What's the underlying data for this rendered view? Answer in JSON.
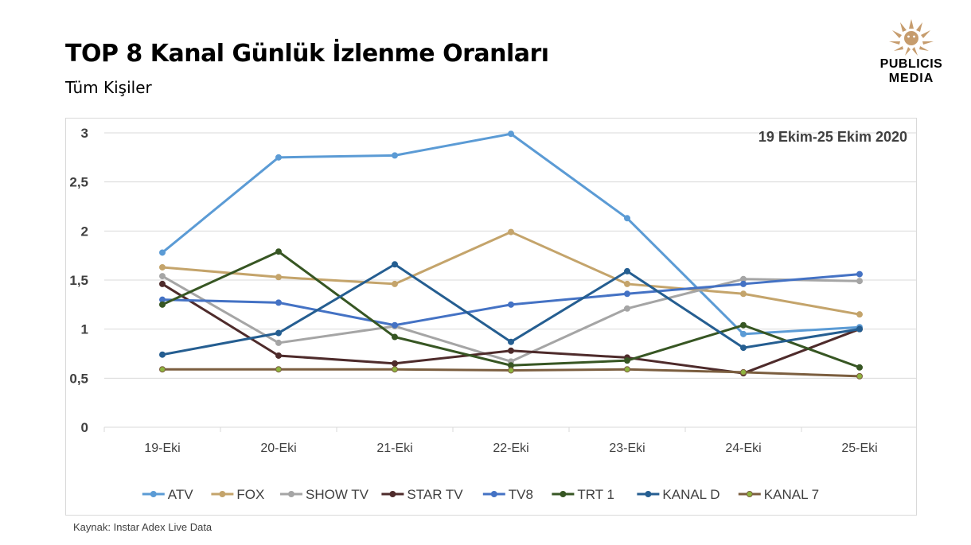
{
  "header": {
    "title": "TOP 8 Kanal Günlük İzlenme Oranları",
    "subtitle": "Tüm Kişiler"
  },
  "logo": {
    "line1": "PUBLICIS",
    "line2": "MEDIA",
    "color": "#c69c6d"
  },
  "footer": {
    "source": "Kaynak: Instar  Adex Live Data"
  },
  "chart_data": {
    "type": "line",
    "title": "",
    "annotation": "19 Ekim-25 Ekim 2020",
    "xlabel": "",
    "ylabel": "",
    "ylim": [
      0,
      3
    ],
    "yticks": [
      "0",
      "0,5",
      "1",
      "1,5",
      "2",
      "2,5",
      "3"
    ],
    "grid": true,
    "legend_position": "bottom",
    "categories": [
      "19-Eki",
      "20-Eki",
      "21-Eki",
      "22-Eki",
      "23-Eki",
      "24-Eki",
      "25-Eki"
    ],
    "series": [
      {
        "name": "ATV",
        "color": "#5b9bd5",
        "values": [
          1.78,
          2.75,
          2.77,
          2.99,
          2.13,
          0.95,
          1.02
        ]
      },
      {
        "name": "FOX",
        "color": "#c4a46b",
        "values": [
          1.63,
          1.53,
          1.46,
          1.99,
          1.46,
          1.36,
          1.15
        ]
      },
      {
        "name": "SHOW TV",
        "color": "#a5a5a5",
        "values": [
          1.54,
          0.86,
          1.03,
          0.67,
          1.21,
          1.51,
          1.49
        ]
      },
      {
        "name": "STAR TV",
        "color": "#4e2b2b",
        "values": [
          1.46,
          0.73,
          0.65,
          0.78,
          0.71,
          0.55,
          1.0
        ]
      },
      {
        "name": "TV8",
        "color": "#4472c4",
        "values": [
          1.3,
          1.27,
          1.04,
          1.25,
          1.36,
          1.46,
          1.56
        ]
      },
      {
        "name": "TRT 1",
        "color": "#375623",
        "values": [
          1.25,
          1.79,
          0.92,
          0.63,
          0.68,
          1.04,
          0.61
        ]
      },
      {
        "name": "KANAL D",
        "color": "#255e91",
        "values": [
          0.74,
          0.96,
          1.66,
          0.87,
          1.59,
          0.81,
          1.0
        ]
      },
      {
        "name": "KANAL 7",
        "color": "#7b5e3f",
        "markerColor": "#8fb43f",
        "values": [
          0.59,
          0.59,
          0.59,
          0.58,
          0.59,
          0.56,
          0.52
        ]
      }
    ]
  }
}
